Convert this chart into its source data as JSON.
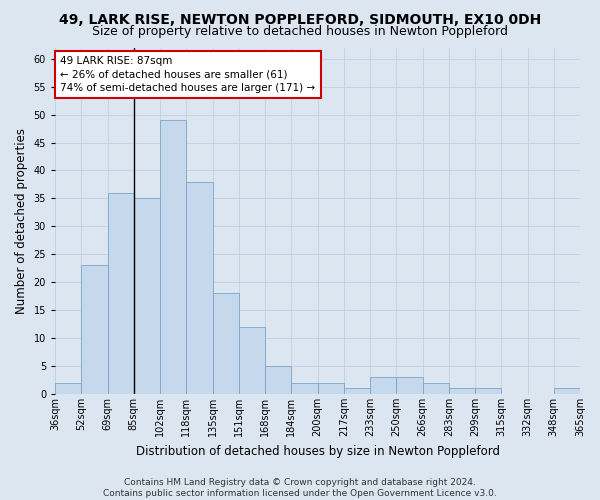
{
  "title": "49, LARK RISE, NEWTON POPPLEFORD, SIDMOUTH, EX10 0DH",
  "subtitle": "Size of property relative to detached houses in Newton Poppleford",
  "xlabel": "Distribution of detached houses by size in Newton Poppleford",
  "ylabel": "Number of detached properties",
  "bar_values": [
    2,
    23,
    36,
    35,
    49,
    38,
    18,
    12,
    5,
    2,
    2,
    1,
    3,
    3,
    2,
    1,
    1,
    0,
    0,
    1
  ],
  "bar_labels": [
    "36sqm",
    "52sqm",
    "69sqm",
    "85sqm",
    "102sqm",
    "118sqm",
    "135sqm",
    "151sqm",
    "168sqm",
    "184sqm",
    "200sqm",
    "217sqm",
    "233sqm",
    "250sqm",
    "266sqm",
    "283sqm",
    "299sqm",
    "315sqm",
    "332sqm",
    "348sqm",
    "365sqm"
  ],
  "bar_color": "#c5d8ec",
  "bar_edge_color": "#7aa6cc",
  "annotation_text": "49 LARK RISE: 87sqm\n← 26% of detached houses are smaller (61)\n74% of semi-detached houses are larger (171) →",
  "annotation_box_facecolor": "#ffffff",
  "annotation_box_edgecolor": "#cc0000",
  "vline_x_index": 3,
  "ylim": [
    0,
    62
  ],
  "yticks": [
    0,
    5,
    10,
    15,
    20,
    25,
    30,
    35,
    40,
    45,
    50,
    55,
    60
  ],
  "grid_color": "#b8cce0",
  "bg_color": "#dce6f1",
  "title_fontsize": 10,
  "subtitle_fontsize": 9,
  "xlabel_fontsize": 8.5,
  "ylabel_fontsize": 8.5,
  "tick_fontsize": 7,
  "annotation_fontsize": 7.5,
  "footer_fontsize": 6.5,
  "footer_line1": "Contains HM Land Registry data © Crown copyright and database right 2024.",
  "footer_line2": "Contains public sector information licensed under the Open Government Licence v3.0."
}
